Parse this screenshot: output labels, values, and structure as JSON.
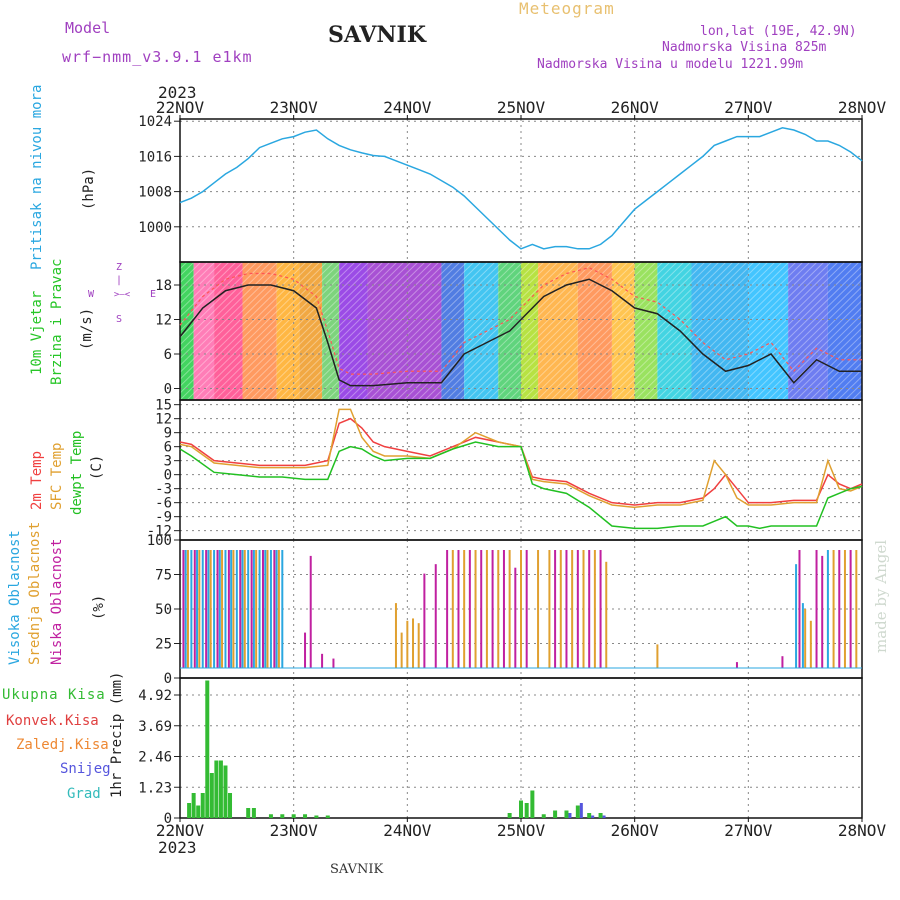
{
  "header": {
    "model_label": "Model",
    "model_name": "wrf−nmm_v3.9.1 e1km",
    "station": "SAVNIK",
    "meteogram": "Meteogram",
    "lonlat": "lon,lat (19E, 42.9N)",
    "altitude": "Nadmorska Visina 825m",
    "model_altitude": "Nadmorska Visina u modelu 1221.99m",
    "year_top": "2023",
    "year_bottom": "2023",
    "footer_station": "SAVNIK",
    "credit": "made by Angel"
  },
  "colors": {
    "pressure": "#2aa7e0",
    "wind_label": "#27c627",
    "temp2m": "#f04040",
    "sfc": "#e0a030",
    "dewpt": "#22c022",
    "high_cloud": "#2aa7e0",
    "mid_cloud": "#e0a030",
    "low_cloud": "#c020a0",
    "precip_total": "#33bb33",
    "precip_conv": "#e04040",
    "precip_frozen": "#ee8833",
    "snow": "#5555dd",
    "graupel": "#33bbbb",
    "header_purple": "#a040c0",
    "header_orange": "#e8c070"
  },
  "chart_data": {
    "type": "meteogram",
    "x_ticks": [
      "22NOV",
      "23NOV",
      "24NOV",
      "25NOV",
      "26NOV",
      "27NOV",
      "28NOV"
    ],
    "panels": [
      {
        "name": "pressure",
        "type": "line",
        "ylabel_lines": [
          "Pritisak na nivou mora"
        ],
        "unit": "(hPa)",
        "yticks": [
          1000,
          1008,
          1016,
          1024
        ],
        "ylim": [
          992,
          1024.5
        ],
        "x": [
          0,
          0.1,
          0.2,
          0.3,
          0.4,
          0.5,
          0.6,
          0.7,
          0.8,
          0.9,
          1.0,
          1.1,
          1.2,
          1.3,
          1.4,
          1.5,
          1.6,
          1.7,
          1.8,
          1.9,
          2.0,
          2.1,
          2.2,
          2.3,
          2.4,
          2.5,
          2.6,
          2.7,
          2.8,
          2.9,
          3.0,
          3.1,
          3.2,
          3.3,
          3.4,
          3.5,
          3.6,
          3.7,
          3.8,
          3.9,
          4.0,
          4.1,
          4.2,
          4.3,
          4.4,
          4.5,
          4.6,
          4.7,
          4.8,
          4.9,
          5.0,
          5.1,
          5.2,
          5.3,
          5.4,
          5.5,
          5.6,
          5.7,
          5.8,
          5.9,
          6.0
        ],
        "y": [
          1005.5,
          1006.5,
          1008,
          1010,
          1012,
          1013.5,
          1015.5,
          1018,
          1019,
          1020,
          1020.5,
          1021.5,
          1022,
          1020,
          1018.5,
          1017.5,
          1016.8,
          1016.2,
          1016,
          1015,
          1014,
          1013,
          1012,
          1010.5,
          1009,
          1007,
          1004.5,
          1002,
          999.5,
          997,
          995,
          996,
          995,
          995.5,
          995.5,
          995,
          995,
          996,
          998,
          1001,
          1004,
          1006,
          1008,
          1010,
          1012,
          1014,
          1016,
          1018.5,
          1019.5,
          1020.5,
          1020.5,
          1020.5,
          1021.5,
          1022.5,
          1022,
          1021,
          1019.5,
          1019.5,
          1018.5,
          1017,
          1015
        ]
      },
      {
        "name": "wind",
        "type": "line+barbs",
        "ylabel_lines": [
          "10m Vjetar",
          "Brzina i Pravac"
        ],
        "unit": "(m/s)",
        "yticks": [
          0,
          6,
          12,
          18
        ],
        "ylim": [
          -2,
          22
        ],
        "compass": [
          "Z",
          "I",
          "E",
          "W",
          "<",
          ">",
          "S"
        ],
        "x": [
          0,
          0.2,
          0.4,
          0.6,
          0.8,
          1.0,
          1.2,
          1.3,
          1.4,
          1.5,
          1.7,
          2.0,
          2.3,
          2.5,
          2.7,
          2.9,
          3.0,
          3.2,
          3.4,
          3.6,
          3.8,
          4.0,
          4.2,
          4.4,
          4.6,
          4.8,
          5.0,
          5.2,
          5.4,
          5.6,
          5.8,
          6.0
        ],
        "y": [
          9,
          14,
          17,
          18,
          18,
          17,
          14,
          8,
          1.5,
          0.5,
          0.5,
          1,
          1,
          6,
          8,
          10,
          12,
          16,
          18,
          19,
          17,
          14,
          13,
          10,
          6,
          3,
          4,
          6,
          1,
          5,
          3,
          3
        ]
      },
      {
        "name": "temperature",
        "type": "line",
        "ylabel_lines": [
          "2m Temp",
          "SFC Temp",
          "dewpt Temp"
        ],
        "unit": "(C)",
        "yticks": [
          -12,
          -9,
          -6,
          -3,
          0,
          3,
          6,
          9,
          12,
          15
        ],
        "ylim": [
          -14,
          16
        ],
        "x": [
          0,
          0.1,
          0.3,
          0.5,
          0.7,
          0.9,
          1.1,
          1.3,
          1.4,
          1.5,
          1.6,
          1.7,
          1.8,
          2.0,
          2.2,
          2.4,
          2.6,
          2.8,
          3.0,
          3.1,
          3.2,
          3.4,
          3.6,
          3.8,
          4.0,
          4.2,
          4.4,
          4.6,
          4.7,
          4.8,
          4.9,
          5.0,
          5.1,
          5.2,
          5.4,
          5.6,
          5.7,
          5.8,
          5.9,
          6.0
        ],
        "series": [
          {
            "name": "2m Temp",
            "values": [
              7,
              6.5,
              3,
              2.5,
              2,
              2,
              2,
              3,
              11,
              12,
              10,
              7,
              6,
              5,
              4,
              6,
              8,
              7,
              6,
              -0.5,
              -1,
              -1.5,
              -4,
              -6,
              -6.5,
              -6,
              -6,
              -5,
              -3,
              0,
              -3,
              -6,
              -6,
              -6,
              -5.5,
              -5.5,
              0,
              -2,
              -3,
              -2
            ]
          },
          {
            "name": "SFC Temp",
            "values": [
              6.5,
              6,
              2.5,
              2,
              1.5,
              1.5,
              1.5,
              2,
              14,
              14,
              8,
              5,
              4,
              4,
              3.5,
              5.5,
              9,
              7,
              6,
              -1,
              -1.5,
              -2,
              -4.5,
              -6.5,
              -7,
              -6.5,
              -6.5,
              -5.5,
              3,
              0,
              -5,
              -6.5,
              -6.5,
              -6.5,
              -6,
              -6,
              3,
              -3,
              -3.5,
              -2.5
            ]
          },
          {
            "name": "dewpt Temp",
            "values": [
              5.5,
              4,
              0.5,
              0,
              -0.5,
              -0.5,
              -1,
              -1,
              5,
              6,
              5.5,
              4,
              3,
              3.5,
              3.5,
              5.5,
              7,
              6,
              6,
              -2,
              -3,
              -4,
              -7,
              -11,
              -11.5,
              -11.5,
              -11,
              -11,
              -10,
              -9,
              -11,
              -11,
              -11.5,
              -11,
              -11,
              -11,
              -5,
              -4,
              -3,
              -2.5
            ]
          }
        ]
      },
      {
        "name": "clouds",
        "type": "bar",
        "ylabel_lines": [
          "Visoka Oblacnost",
          "Srednja Oblacnost",
          "Niska Oblacnost"
        ],
        "unit": "(%)",
        "yticks": [
          0,
          25,
          50,
          75,
          100
        ],
        "ylim": [
          0,
          100
        ],
        "high_x": [
          0.05,
          0.1,
          0.15,
          0.2,
          0.25,
          0.3,
          0.35,
          0.4,
          0.45,
          0.5,
          0.55,
          0.6,
          0.65,
          0.7,
          0.75,
          0.8,
          0.85,
          0.9,
          5.42,
          5.48,
          5.7
        ],
        "high_y": [
          100,
          100,
          100,
          100,
          100,
          100,
          100,
          100,
          100,
          100,
          100,
          100,
          100,
          100,
          100,
          100,
          100,
          100,
          88,
          55,
          100
        ],
        "mid_x": [
          0.07,
          0.17,
          0.27,
          0.37,
          0.47,
          0.57,
          0.67,
          0.77,
          0.87,
          1.9,
          1.95,
          2.0,
          2.05,
          2.1,
          2.4,
          2.5,
          2.6,
          2.7,
          2.8,
          2.9,
          3.0,
          3.15,
          3.25,
          3.35,
          3.45,
          3.55,
          3.65,
          3.75,
          4.2,
          5.5,
          5.55,
          5.75,
          5.85,
          5.95
        ],
        "mid_y": [
          100,
          100,
          100,
          100,
          100,
          100,
          100,
          100,
          100,
          55,
          30,
          40,
          42,
          38,
          100,
          100,
          100,
          100,
          100,
          100,
          100,
          100,
          100,
          100,
          100,
          100,
          100,
          90,
          20,
          50,
          40,
          100,
          100,
          100
        ],
        "low_x": [
          0.03,
          0.13,
          0.23,
          0.33,
          0.43,
          0.53,
          0.63,
          0.73,
          0.83,
          1.1,
          1.15,
          1.25,
          1.35,
          2.15,
          2.25,
          2.35,
          2.45,
          2.55,
          2.65,
          2.75,
          2.85,
          2.95,
          3.05,
          3.3,
          3.4,
          3.5,
          3.6,
          3.7,
          4.9,
          5.3,
          5.45,
          5.6,
          5.65,
          5.8,
          5.9
        ],
        "low_y": [
          100,
          100,
          100,
          100,
          100,
          100,
          100,
          100,
          100,
          30,
          95,
          12,
          8,
          80,
          88,
          100,
          100,
          100,
          100,
          100,
          100,
          85,
          100,
          100,
          100,
          100,
          100,
          100,
          5,
          10,
          100,
          100,
          95,
          100,
          100
        ]
      },
      {
        "name": "precip",
        "type": "bar",
        "ylabel_lines": [
          "1hr Precip (mm)"
        ],
        "unit": "(mm)",
        "legend": [
          "Ukupna Kisa",
          "Konvek.Kisa",
          "Zaledj.Kisa",
          "Snijeg",
          "Grad"
        ],
        "yticks": [
          0,
          1.23,
          2.46,
          3.69,
          4.92
        ],
        "ylim": [
          0,
          5.6
        ],
        "x": [
          0.08,
          0.12,
          0.16,
          0.2,
          0.24,
          0.28,
          0.32,
          0.36,
          0.4,
          0.44,
          0.6,
          0.65,
          0.8,
          0.9,
          1.0,
          1.1,
          1.2,
          1.3,
          2.9,
          3.0,
          3.05,
          3.1,
          3.2,
          3.3,
          3.4,
          3.5,
          3.6,
          3.7
        ],
        "total": [
          0.6,
          1.0,
          0.5,
          1.0,
          5.5,
          1.8,
          2.3,
          2.3,
          2.1,
          1.0,
          0.4,
          0.4,
          0.15,
          0.15,
          0.15,
          0.15,
          0.1,
          0.1,
          0.2,
          0.7,
          0.6,
          1.1,
          0.15,
          0.3,
          0.3,
          0.5,
          0.2,
          0.2
        ],
        "snow": [
          0,
          0,
          0,
          0,
          0,
          0,
          0,
          0,
          0,
          0,
          0,
          0,
          0,
          0,
          0,
          0,
          0,
          0,
          0,
          0,
          0,
          0,
          0,
          0,
          0.2,
          0.6,
          0.1,
          0.1
        ]
      }
    ]
  }
}
